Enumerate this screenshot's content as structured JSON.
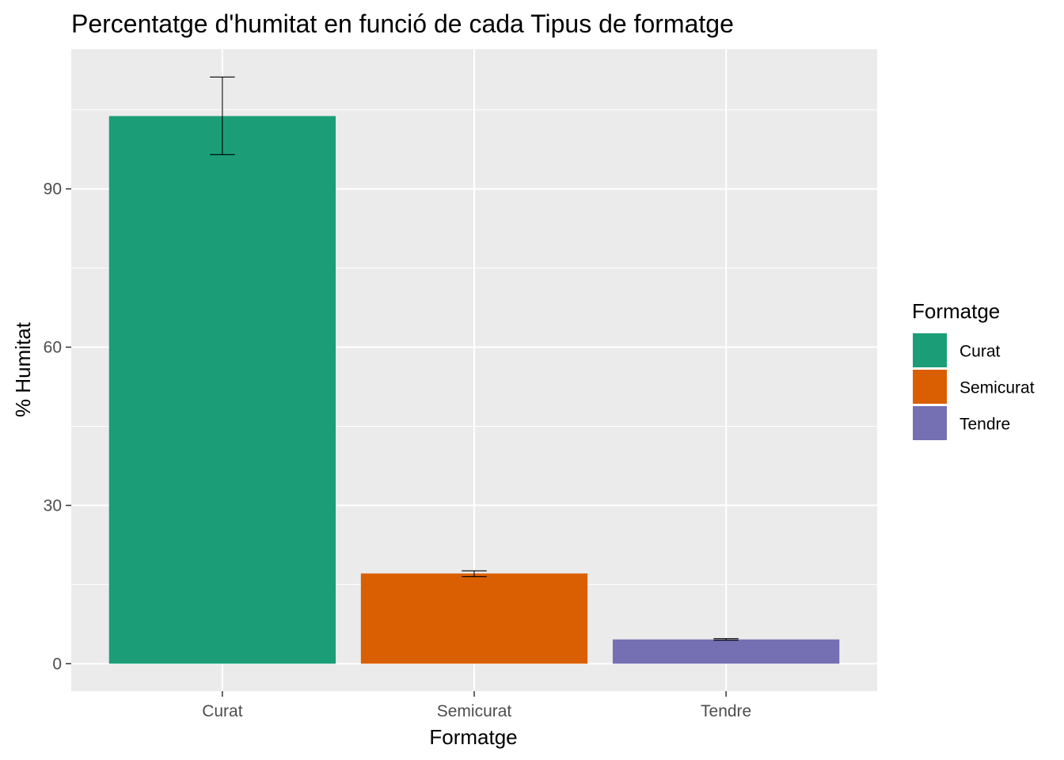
{
  "chart_data": {
    "type": "bar",
    "title": "Percentatge d'humitat en funció de cada Tipus de formatge",
    "xlabel": "Formatge",
    "ylabel": "% Humitat",
    "categories": [
      "Curat",
      "Semicurat",
      "Tendre"
    ],
    "values": [
      103.8,
      17.1,
      4.6
    ],
    "error_low": [
      96.5,
      16.5,
      4.45
    ],
    "error_high": [
      111.2,
      17.6,
      4.75
    ],
    "colors": [
      "#1b9e77",
      "#d95f02",
      "#7570b3"
    ],
    "y_ticks": [
      "0",
      "30",
      "60",
      "90"
    ],
    "y_tick_values": [
      0,
      30,
      60,
      90
    ],
    "ylim": [
      -5.2,
      116.5
    ],
    "grid": true,
    "panel_background": "#ebebeb",
    "legend": {
      "title": "Formatge",
      "position": "right",
      "items": [
        "Curat",
        "Semicurat",
        "Tendre"
      ]
    }
  }
}
